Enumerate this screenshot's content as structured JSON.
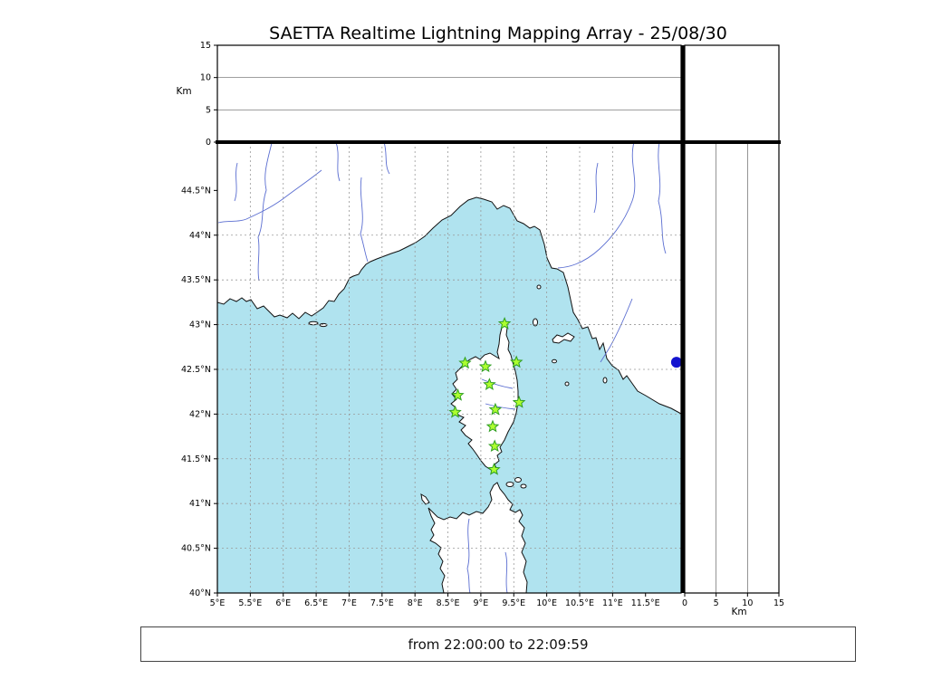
{
  "title": "SAETTA Realtime Lightning Mapping Array - 25/08/30",
  "status_bar": "from 22:00:00 to 22:09:59",
  "chart_data": {
    "type": "scatter",
    "title": "SAETTA Realtime Lightning Mapping Array - 25/08/30",
    "subtitle": "",
    "legend": "none",
    "map": {
      "lon_range": [
        5.0,
        12.04
      ],
      "lat_range": [
        40.0,
        45.04
      ],
      "lon_ticks": [
        5,
        5.5,
        6,
        6.5,
        7,
        7.5,
        8,
        8.5,
        9,
        9.5,
        10,
        10.5,
        11,
        11.5
      ],
      "lon_tick_labels": [
        "5°E",
        "5.5°E",
        "6°E",
        "6.5°E",
        "7°E",
        "7.5°E",
        "8°E",
        "8.5°E",
        "9°E",
        "9.5°E",
        "10°E",
        "10.5°E",
        "11°E",
        "11.5°E"
      ],
      "lat_ticks": [
        40,
        40.5,
        41,
        41.5,
        42,
        42.5,
        43,
        43.5,
        44,
        44.5
      ],
      "lat_tick_labels": [
        "40°N",
        "40.5°N",
        "41°N",
        "41.5°N",
        "42°N",
        "42.5°N",
        "43°N",
        "43.5°N",
        "44°N",
        "44.5°N"
      ],
      "grid_step_deg": 0.5,
      "grid_style": "dashed"
    },
    "altitude_axis": {
      "label": "Km",
      "range": [
        0,
        15
      ],
      "ticks": [
        0,
        5,
        10,
        15
      ],
      "tick_labels": [
        "0",
        "5",
        "10",
        "15"
      ],
      "gridlines": [
        5,
        10
      ]
    },
    "stations": [
      {
        "lon": 9.36,
        "lat": 43.01
      },
      {
        "lon": 8.76,
        "lat": 42.57
      },
      {
        "lon": 9.07,
        "lat": 42.53
      },
      {
        "lon": 9.54,
        "lat": 42.58
      },
      {
        "lon": 9.13,
        "lat": 42.33
      },
      {
        "lon": 8.65,
        "lat": 42.21
      },
      {
        "lon": 9.58,
        "lat": 42.13
      },
      {
        "lon": 8.61,
        "lat": 42.02
      },
      {
        "lon": 9.22,
        "lat": 42.05
      },
      {
        "lon": 9.18,
        "lat": 41.86
      },
      {
        "lon": 9.21,
        "lat": 41.64
      },
      {
        "lon": 9.2,
        "lat": 41.38
      }
    ],
    "event_marker": {
      "lon": 11.97,
      "lat": 42.58
    },
    "colors": {
      "sea": "#b0e3ef",
      "land": "#ffffff",
      "coast": "#111111",
      "river": "#5b6ed1",
      "grid": "#999999",
      "station_fill": "#adff2f",
      "station_stroke": "#2f9e23",
      "event": "#1313cf"
    }
  }
}
